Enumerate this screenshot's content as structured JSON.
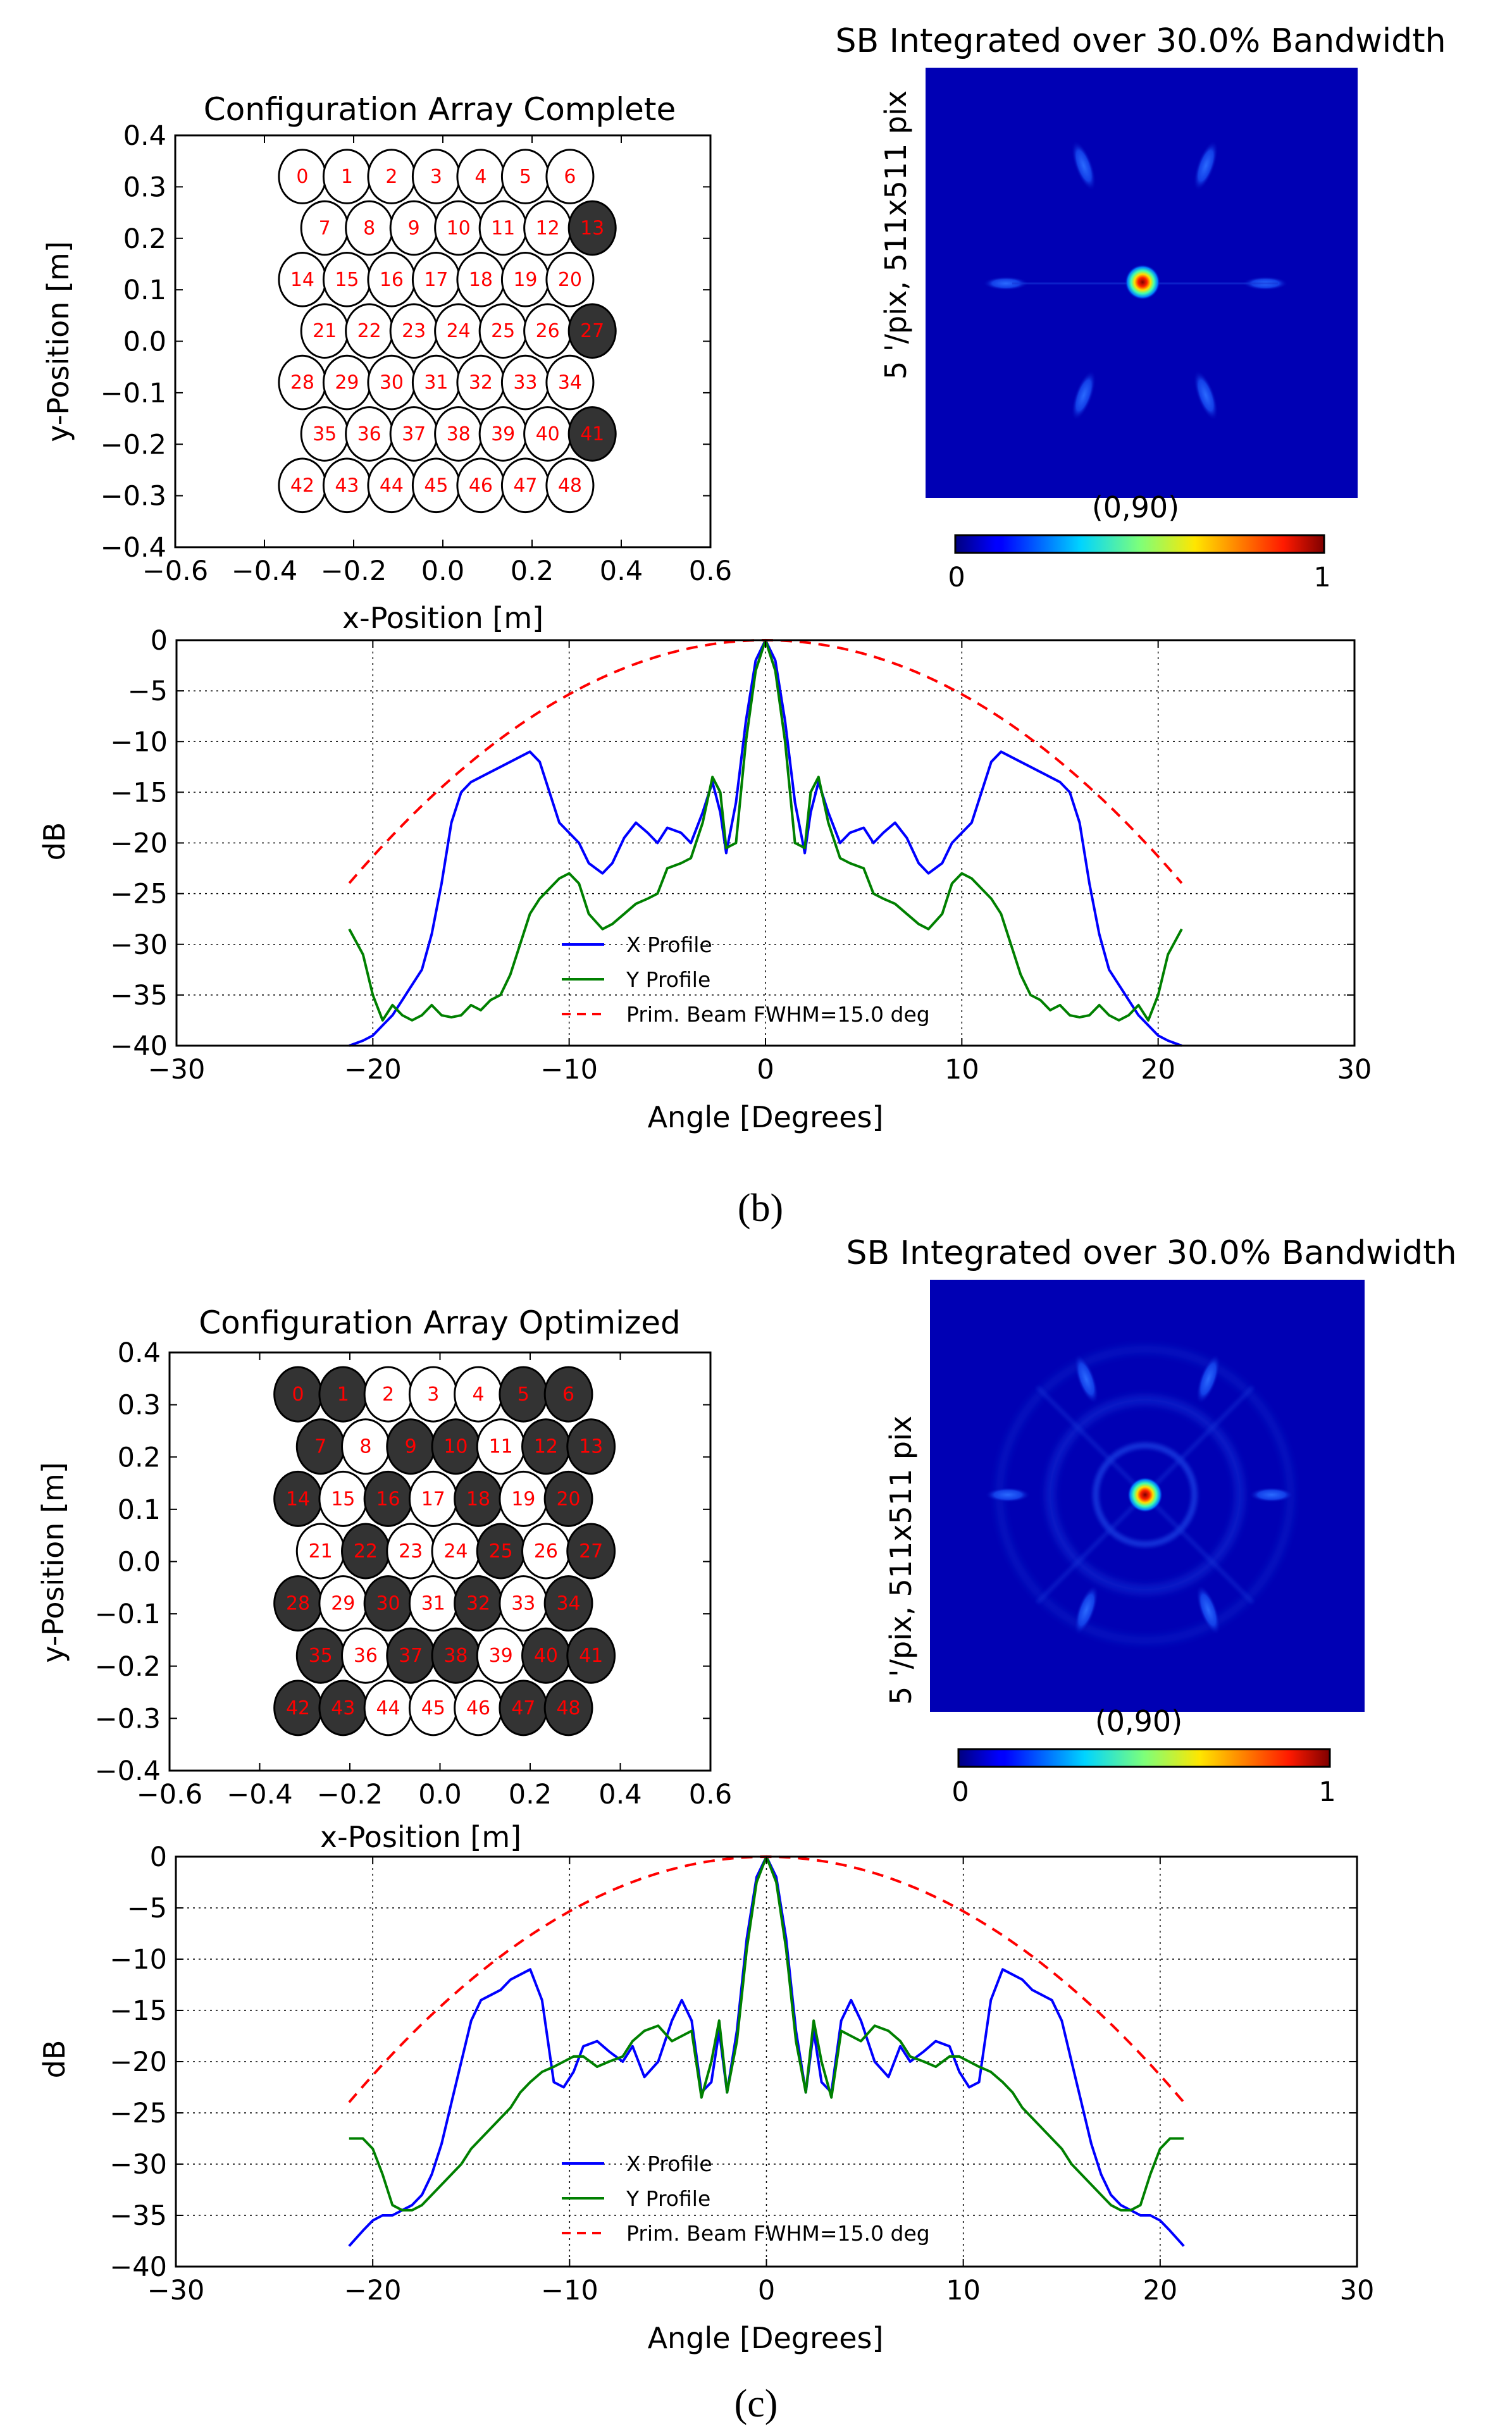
{
  "panels": [
    {
      "id": "b",
      "panel_label": "(b)",
      "config_title": "Configuration Array Complete",
      "beam_title": "SB Integrated over 30.0% Bandwidth",
      "beam_ylabel": "5 '/pix,   511x511 pix",
      "beam_xlabel": "(0,90)",
      "colorbar_min": "0",
      "colorbar_max": "1",
      "sidelobe": "weak",
      "config_xlabel": "x-Position [m]",
      "config_ylabel": "y-Position [m]",
      "profile_xlabel": "Angle [Degrees]",
      "profile_ylabel": "dB",
      "legend": [
        "X Profile",
        "Y Profile",
        "Prim. Beam FWHM=15.0 deg"
      ]
    },
    {
      "id": "c",
      "panel_label": "(c)",
      "config_title": "Configuration Array Optimized",
      "beam_title": "SB Integrated over 30.0% Bandwidth",
      "beam_ylabel": "5 '/pix,   511x511 pix",
      "beam_xlabel": "(0,90)",
      "colorbar_min": "0",
      "colorbar_max": "1",
      "sidelobe": "rings",
      "config_xlabel": "x-Position [m]",
      "config_ylabel": "y-Position [m]",
      "profile_xlabel": "Angle [Degrees]",
      "profile_ylabel": "dB",
      "legend": [
        "X Profile",
        "Y Profile",
        "Prim. Beam FWHM=15.0 deg"
      ]
    }
  ],
  "chart_data": [
    {
      "type": "scatter",
      "title": "Configuration Array Complete",
      "xlabel": "x-Position [m]",
      "ylabel": "y-Position [m]",
      "xlim": [
        -0.6,
        0.6
      ],
      "ylim": [
        -0.4,
        0.4
      ],
      "xticks": [
        "−0.6",
        "−0.4",
        "−0.2",
        "0.0",
        "0.2",
        "0.4",
        "0.6"
      ],
      "yticks": [
        "0.4",
        "0.3",
        "0.2",
        "0.1",
        "0.0",
        "−0.1",
        "−0.2",
        "−0.3",
        "−0.4"
      ],
      "element_labels": [
        "0",
        "1",
        "2",
        "3",
        "4",
        "5",
        "6",
        "7",
        "8",
        "9",
        "10",
        "11",
        "12",
        "13",
        "14",
        "15",
        "16",
        "17",
        "18",
        "19",
        "20",
        "21",
        "22",
        "23",
        "24",
        "25",
        "26",
        "27",
        "28",
        "29",
        "30",
        "31",
        "32",
        "33",
        "34",
        "35",
        "36",
        "37",
        "38",
        "39",
        "40",
        "41",
        "42",
        "43",
        "44",
        "45",
        "46",
        "47",
        "48"
      ],
      "filled": [
        13,
        27,
        41
      ]
    },
    {
      "type": "heatmap",
      "title": "SB Integrated over 30.0% Bandwidth",
      "ylabel": "5 '/pix,   511x511 pix",
      "xlabel": "(0,90)",
      "colorbar": [
        0,
        1
      ],
      "peak_position": [
        0.5,
        0.5
      ]
    },
    {
      "type": "line",
      "xlabel": "Angle [Degrees]",
      "ylabel": "dB",
      "xlim": [
        -30,
        30
      ],
      "ylim": [
        -40,
        0
      ],
      "xticks": [
        "−30",
        "−20",
        "−10",
        "0",
        "10",
        "20",
        "30"
      ],
      "yticks": [
        "0",
        "−5",
        "−10",
        "−15",
        "−20",
        "−25",
        "−30",
        "−35",
        "−40"
      ],
      "series": [
        {
          "name": "X Profile",
          "color": "#0000ff",
          "x": [
            0,
            0.5,
            1.0,
            1.5,
            2.0,
            2.3,
            2.7,
            3.2,
            3.8,
            4.3,
            5.0,
            5.5,
            6.0,
            6.6,
            7.2,
            7.8,
            8.3,
            9.0,
            9.5,
            10.0,
            10.5,
            11.0,
            11.5,
            12.0,
            12.5,
            13.0,
            13.5,
            14.0,
            14.5,
            15.0,
            15.5,
            16.0,
            16.5,
            17.0,
            17.5,
            18.0,
            18.5,
            19.0,
            19.5,
            20.0,
            20.5,
            21.2
          ],
          "y": [
            0,
            -2,
            -8,
            -16,
            -21,
            -17,
            -14,
            -17,
            -20,
            -19,
            -18.5,
            -20,
            -19,
            -18,
            -19.5,
            -22,
            -23,
            -22,
            -20,
            -19,
            -18,
            -15,
            -12,
            -11,
            -11.5,
            -12,
            -12.5,
            -13,
            -13.5,
            -14,
            -15,
            -18,
            -24,
            -29,
            -32.5,
            -34,
            -35.5,
            -37,
            -38,
            -39,
            -39.5,
            -40
          ]
        },
        {
          "name": "Y Profile",
          "color": "#008000",
          "x": [
            0,
            0.5,
            1.0,
            1.5,
            2.0,
            2.3,
            2.7,
            3.2,
            3.8,
            4.3,
            5.0,
            5.5,
            6.0,
            6.6,
            7.2,
            7.8,
            8.3,
            9.0,
            9.5,
            10.0,
            10.5,
            11.0,
            11.5,
            12.0,
            12.5,
            13.0,
            13.5,
            14.0,
            14.5,
            15.0,
            15.5,
            16.0,
            16.5,
            17.0,
            17.5,
            18.0,
            18.5,
            19.0,
            19.5,
            20.0,
            20.5,
            21.2
          ],
          "y": [
            0,
            -3,
            -10,
            -20,
            -20.5,
            -15,
            -13.5,
            -18,
            -21.5,
            -22,
            -22.5,
            -25,
            -25.5,
            -26,
            -27,
            -28,
            -28.5,
            -27,
            -24,
            -23,
            -23.5,
            -24.5,
            -25.5,
            -27,
            -30,
            -33,
            -35,
            -35.5,
            -36.5,
            -36,
            -37,
            -37.2,
            -37,
            -36,
            -37,
            -37.5,
            -37,
            -36,
            -37.5,
            -35,
            -31,
            -28.5
          ]
        },
        {
          "name": "Prim. Beam FWHM=15.0 deg",
          "color": "#ff0000",
          "style": "dashed",
          "fwhm": 15.0,
          "x": [
            -21.2,
            0,
            21.2
          ],
          "y": [
            -24,
            0,
            -24
          ]
        }
      ]
    },
    {
      "type": "scatter",
      "title": "Configuration Array Optimized",
      "xlabel": "x-Position [m]",
      "ylabel": "y-Position [m]",
      "xlim": [
        -0.6,
        0.6
      ],
      "ylim": [
        -0.4,
        0.4
      ],
      "xticks": [
        "−0.6",
        "−0.4",
        "−0.2",
        "0.0",
        "0.2",
        "0.4",
        "0.6"
      ],
      "yticks": [
        "0.4",
        "0.3",
        "0.2",
        "0.1",
        "0.0",
        "−0.1",
        "−0.2",
        "−0.3",
        "−0.4"
      ],
      "element_labels": [
        "0",
        "1",
        "2",
        "3",
        "4",
        "5",
        "6",
        "7",
        "8",
        "9",
        "10",
        "11",
        "12",
        "13",
        "14",
        "15",
        "16",
        "17",
        "18",
        "19",
        "20",
        "21",
        "22",
        "23",
        "24",
        "25",
        "26",
        "27",
        "28",
        "29",
        "30",
        "31",
        "32",
        "33",
        "34",
        "35",
        "36",
        "37",
        "38",
        "39",
        "40",
        "41",
        "42",
        "43",
        "44",
        "45",
        "46",
        "47",
        "48"
      ],
      "filled": [
        0,
        1,
        5,
        6,
        7,
        9,
        10,
        12,
        13,
        14,
        16,
        18,
        20,
        22,
        25,
        27,
        28,
        30,
        32,
        34,
        35,
        37,
        38,
        40,
        41,
        42,
        43,
        47,
        48
      ]
    },
    {
      "type": "heatmap",
      "title": "SB Integrated over 30.0% Bandwidth",
      "ylabel": "5 '/pix,   511x511 pix",
      "xlabel": "(0,90)",
      "colorbar": [
        0,
        1
      ],
      "peak_position": [
        0.5,
        0.5
      ]
    },
    {
      "type": "line",
      "xlabel": "Angle [Degrees]",
      "ylabel": "dB",
      "xlim": [
        -30,
        30
      ],
      "ylim": [
        -40,
        0
      ],
      "xticks": [
        "−30",
        "−20",
        "−10",
        "0",
        "10",
        "20",
        "30"
      ],
      "yticks": [
        "0",
        "−5",
        "−10",
        "−15",
        "−20",
        "−25",
        "−30",
        "−35",
        "−40"
      ],
      "series": [
        {
          "name": "X Profile",
          "color": "#0000ff",
          "x": [
            0,
            0.5,
            1.0,
            1.5,
            2.0,
            2.4,
            2.8,
            3.3,
            3.8,
            4.3,
            4.8,
            5.5,
            6.2,
            6.8,
            7.3,
            8.0,
            8.6,
            9.3,
            9.8,
            10.3,
            10.8,
            11.4,
            12.0,
            12.5,
            13.0,
            13.5,
            14.0,
            14.5,
            15.0,
            15.5,
            16.0,
            16.5,
            17.0,
            17.5,
            18.0,
            18.5,
            19.0,
            19.5,
            20.0,
            20.5,
            21.2
          ],
          "y": [
            0,
            -2,
            -8,
            -17,
            -23,
            -17,
            -22,
            -23,
            -16,
            -14,
            -16,
            -20,
            -21.5,
            -18.5,
            -20,
            -19,
            -18,
            -18.5,
            -21,
            -22.5,
            -22,
            -14,
            -11,
            -11.5,
            -12,
            -13,
            -13.5,
            -14,
            -16,
            -20,
            -24,
            -28,
            -31,
            -33,
            -34,
            -34.5,
            -35,
            -35,
            -35.5,
            -36.5,
            -38
          ]
        },
        {
          "name": "Y Profile",
          "color": "#008000",
          "x": [
            0,
            0.5,
            1.0,
            1.5,
            2.0,
            2.4,
            2.8,
            3.3,
            3.8,
            4.3,
            4.8,
            5.5,
            6.2,
            6.8,
            7.3,
            8.0,
            8.6,
            9.3,
            9.8,
            10.3,
            10.8,
            11.4,
            12.0,
            12.5,
            13.0,
            13.5,
            14.0,
            14.5,
            15.0,
            15.5,
            16.0,
            16.5,
            17.0,
            17.5,
            18.0,
            18.5,
            19.0,
            19.5,
            20.0,
            20.5,
            21.2
          ],
          "y": [
            0,
            -2.5,
            -9,
            -18,
            -23,
            -16,
            -20,
            -23.5,
            -17,
            -17.5,
            -18,
            -16.5,
            -17,
            -18,
            -19.5,
            -20,
            -20.5,
            -19.5,
            -19.5,
            -20,
            -20.5,
            -21,
            -22,
            -23,
            -24.5,
            -25.5,
            -26.5,
            -27.5,
            -28.5,
            -30,
            -31,
            -32,
            -33,
            -34,
            -34.5,
            -34.5,
            -34,
            -31,
            -28.5,
            -27.5,
            -27.5
          ]
        },
        {
          "name": "Prim. Beam FWHM=15.0 deg",
          "color": "#ff0000",
          "style": "dashed",
          "fwhm": 15.0,
          "x": [
            -21.2,
            0,
            21.2
          ],
          "y": [
            -24,
            0,
            -24
          ]
        }
      ]
    }
  ]
}
